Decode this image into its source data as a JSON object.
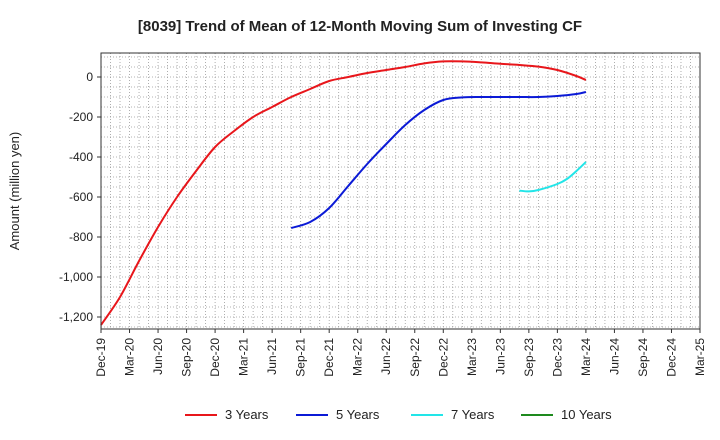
{
  "chart_data": {
    "type": "line",
    "title": "[8039]  Trend of Mean of 12-Month Moving Sum of Investing CF",
    "ylabel": "Amount (million yen)",
    "xlabel": "",
    "ylim": [
      -1260,
      120
    ],
    "yticks": [
      0,
      -200,
      -400,
      -600,
      -800,
      -1000,
      -1200
    ],
    "ytick_labels": [
      "0",
      "-200",
      "-400",
      "-600",
      "-800",
      "-1,000",
      "-1,200"
    ],
    "x_start": "2019-12",
    "x_end": "2025-03",
    "xticks": [
      "2019-12",
      "2020-03",
      "2020-06",
      "2020-09",
      "2020-12",
      "2021-03",
      "2021-06",
      "2021-09",
      "2021-12",
      "2022-03",
      "2022-06",
      "2022-09",
      "2022-12",
      "2023-03",
      "2023-06",
      "2023-09",
      "2023-12",
      "2024-03",
      "2024-06",
      "2024-09",
      "2024-12",
      "2025-03"
    ],
    "xtick_labels": [
      "Dec-19",
      "Mar-20",
      "Jun-20",
      "Sep-20",
      "Dec-20",
      "Mar-21",
      "Jun-21",
      "Sep-21",
      "Dec-21",
      "Mar-22",
      "Jun-22",
      "Sep-22",
      "Dec-22",
      "Mar-23",
      "Jun-23",
      "Sep-23",
      "Dec-23",
      "Mar-24",
      "Jun-24",
      "Sep-24",
      "Dec-24",
      "Mar-25"
    ],
    "grid": true,
    "legend_position": "bottom",
    "series": [
      {
        "name": "3 Years",
        "color": "#e8161b",
        "points": [
          [
            "2019-12",
            -1240
          ],
          [
            "2020-02",
            -1100
          ],
          [
            "2020-04",
            -920
          ],
          [
            "2020-06",
            -750
          ],
          [
            "2020-08",
            -600
          ],
          [
            "2020-10",
            -470
          ],
          [
            "2020-12",
            -350
          ],
          [
            "2021-02",
            -270
          ],
          [
            "2021-04",
            -200
          ],
          [
            "2021-06",
            -150
          ],
          [
            "2021-08",
            -100
          ],
          [
            "2021-10",
            -60
          ],
          [
            "2021-12",
            -20
          ],
          [
            "2022-02",
            0
          ],
          [
            "2022-04",
            20
          ],
          [
            "2022-06",
            35
          ],
          [
            "2022-08",
            50
          ],
          [
            "2022-10",
            68
          ],
          [
            "2022-12",
            78
          ],
          [
            "2023-02",
            78
          ],
          [
            "2023-04",
            73
          ],
          [
            "2023-06",
            66
          ],
          [
            "2023-08",
            60
          ],
          [
            "2023-10",
            52
          ],
          [
            "2023-12",
            35
          ],
          [
            "2024-02",
            5
          ],
          [
            "2024-03",
            -15
          ]
        ]
      },
      {
        "name": "5 Years",
        "color": "#0b1ad6",
        "points": [
          [
            "2021-08",
            -755
          ],
          [
            "2021-10",
            -725
          ],
          [
            "2021-12",
            -655
          ],
          [
            "2022-02",
            -545
          ],
          [
            "2022-04",
            -435
          ],
          [
            "2022-06",
            -335
          ],
          [
            "2022-08",
            -240
          ],
          [
            "2022-10",
            -165
          ],
          [
            "2022-12",
            -115
          ],
          [
            "2023-02",
            -102
          ],
          [
            "2023-04",
            -100
          ],
          [
            "2023-06",
            -100
          ],
          [
            "2023-08",
            -100
          ],
          [
            "2023-10",
            -100
          ],
          [
            "2023-12",
            -95
          ],
          [
            "2024-02",
            -85
          ],
          [
            "2024-03",
            -75
          ]
        ]
      },
      {
        "name": "7 Years",
        "color": "#22e5e8",
        "points": [
          [
            "2023-08",
            -568
          ],
          [
            "2023-09",
            -572
          ],
          [
            "2023-10",
            -565
          ],
          [
            "2023-12",
            -535
          ],
          [
            "2024-01",
            -510
          ],
          [
            "2024-02",
            -470
          ],
          [
            "2024-03",
            -425
          ]
        ]
      },
      {
        "name": "10 Years",
        "color": "#1e8a1e",
        "points": []
      }
    ]
  }
}
